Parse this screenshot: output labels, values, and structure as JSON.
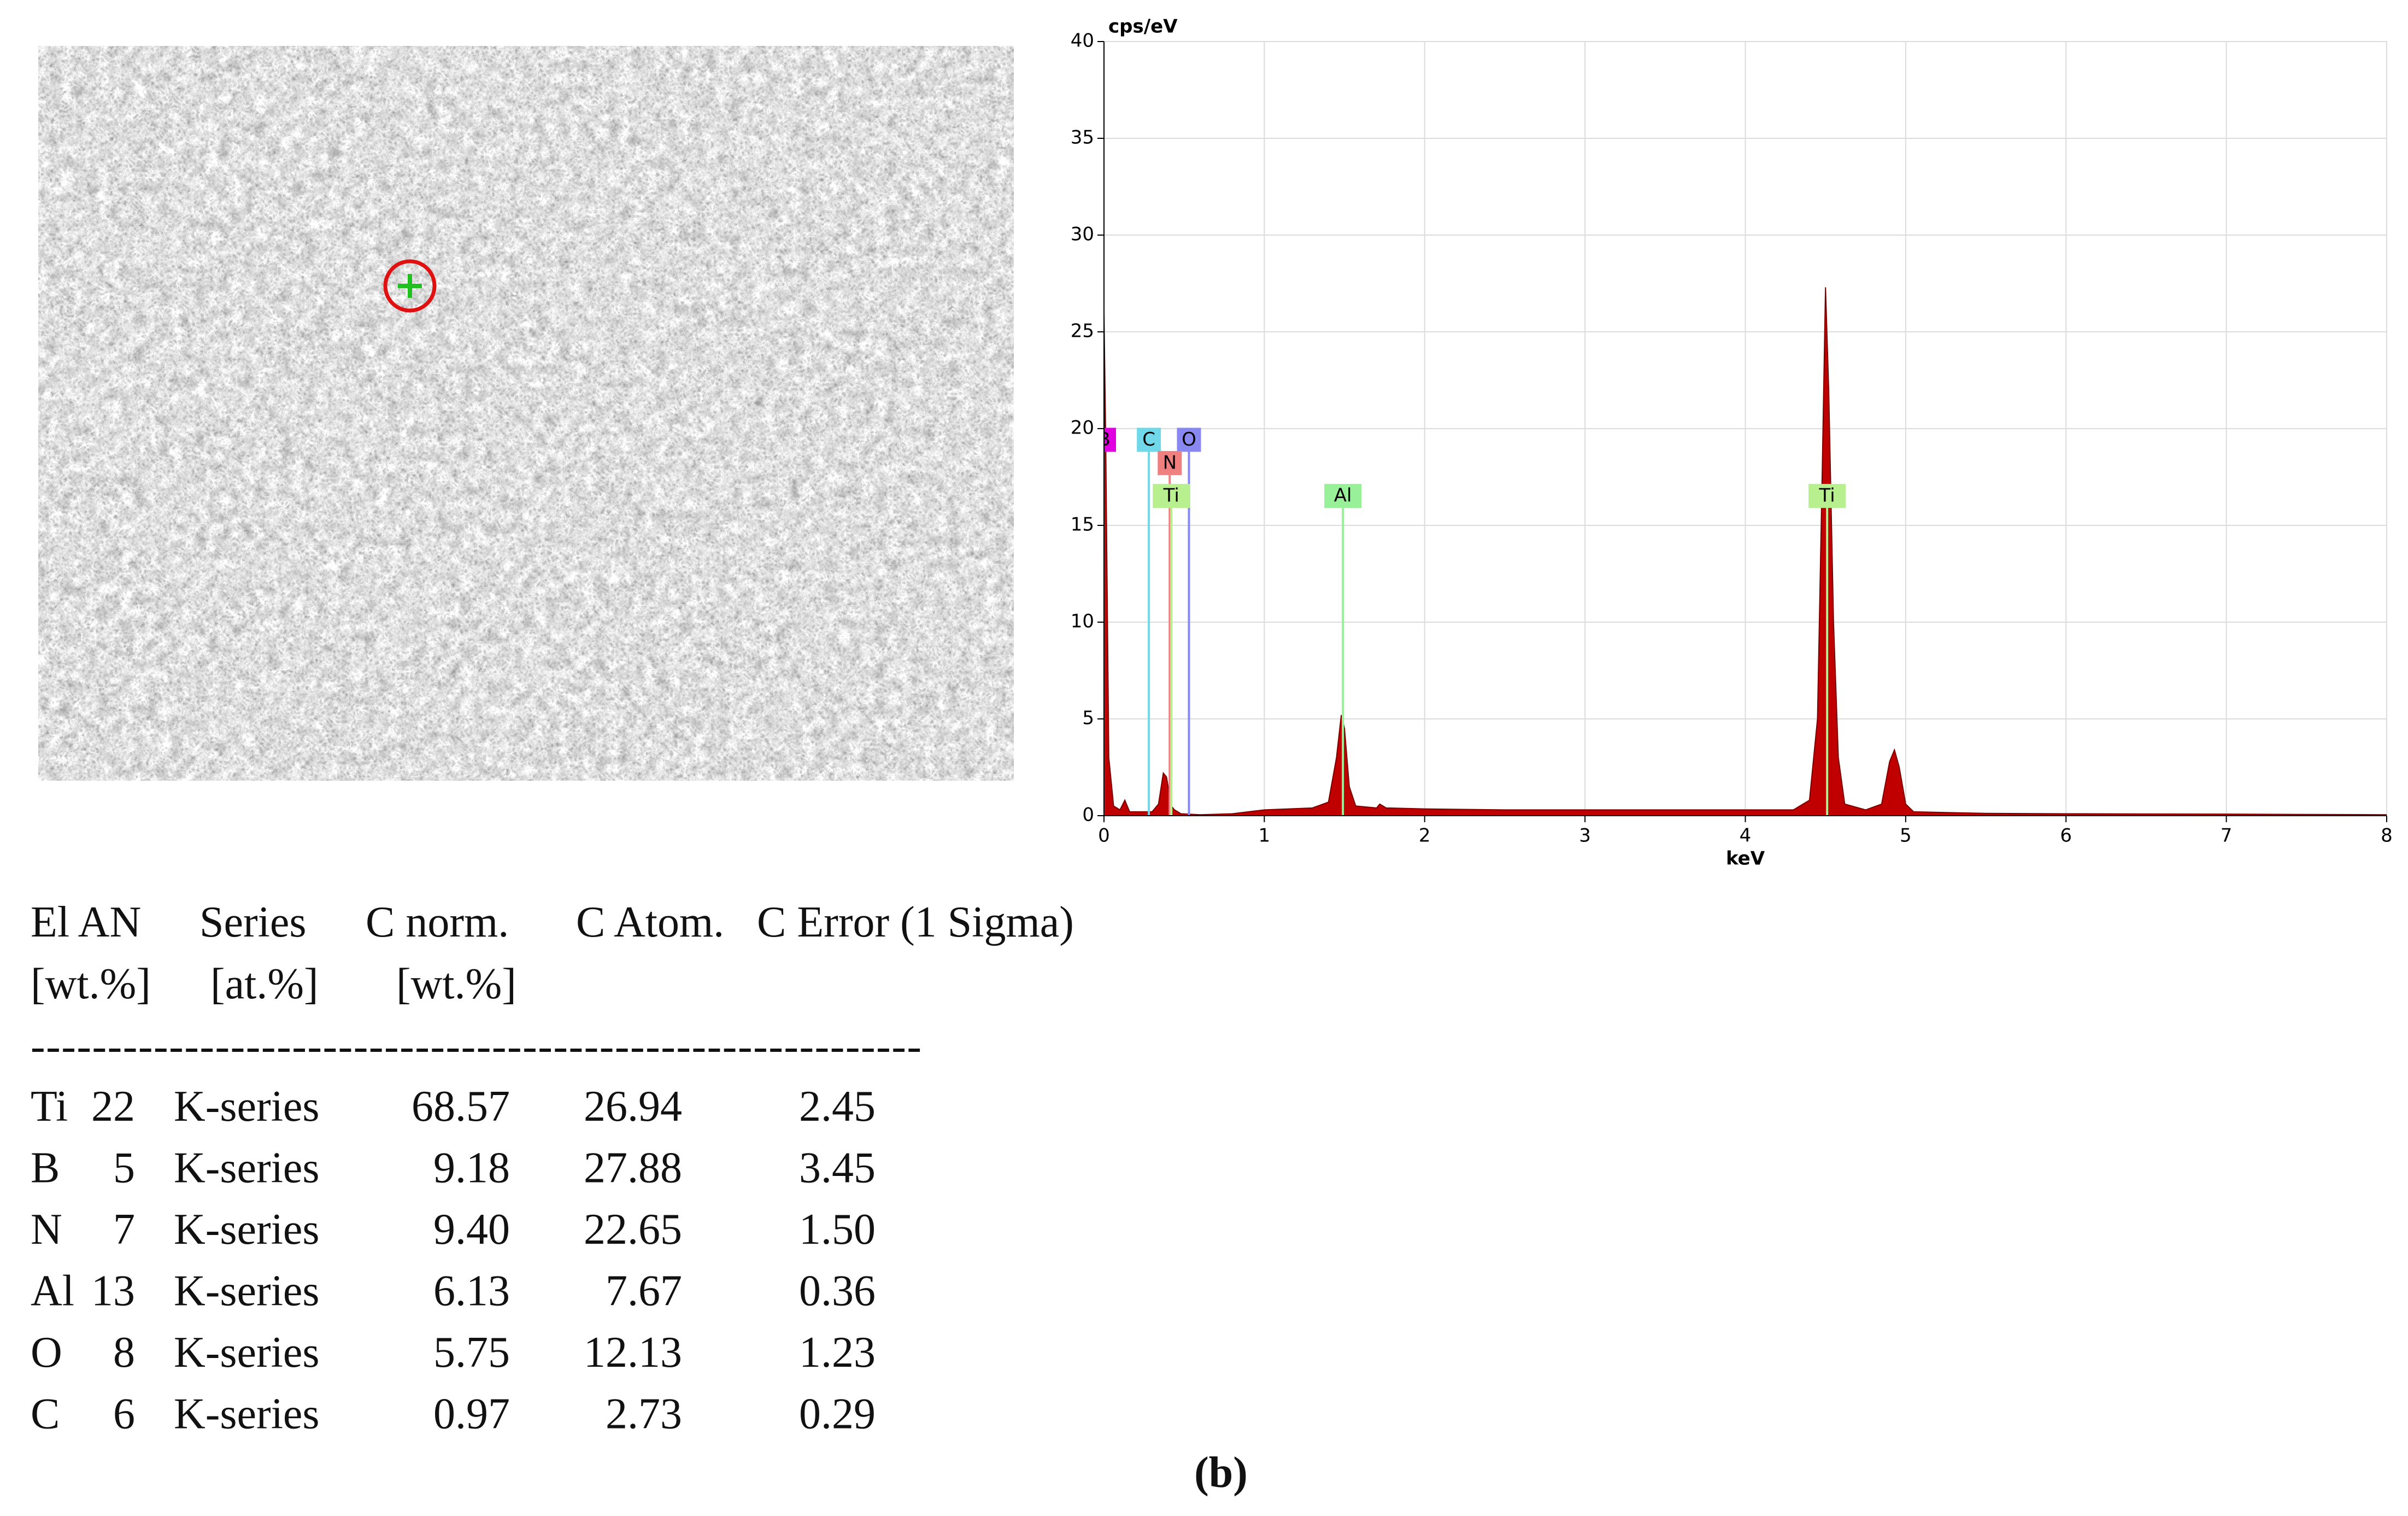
{
  "chart_data": {
    "type": "area",
    "ylabel": "cps/eV",
    "xlabel": "keV",
    "x": [
      0,
      0.01,
      0.03,
      0.06,
      0.1,
      0.13,
      0.16,
      0.3,
      0.34,
      0.37,
      0.39,
      0.42,
      0.44,
      0.48,
      0.6,
      0.8,
      1.0,
      1.3,
      1.4,
      1.45,
      1.48,
      1.5,
      1.53,
      1.57,
      1.7,
      1.72,
      1.76,
      2.0,
      2.5,
      3.0,
      3.5,
      4.0,
      4.3,
      4.4,
      4.45,
      4.48,
      4.5,
      4.52,
      4.55,
      4.58,
      4.62,
      4.75,
      4.85,
      4.9,
      4.93,
      4.96,
      5.0,
      5.05,
      5.5,
      6.0,
      7.0,
      8.0
    ],
    "values": [
      26,
      20,
      3,
      0.5,
      0.3,
      0.8,
      0.2,
      0.2,
      0.6,
      2.2,
      2.0,
      0.5,
      0.3,
      0.1,
      0.05,
      0.1,
      0.3,
      0.4,
      0.7,
      3.0,
      5.2,
      4.5,
      1.5,
      0.5,
      0.4,
      0.6,
      0.4,
      0.35,
      0.3,
      0.3,
      0.3,
      0.3,
      0.3,
      0.8,
      5,
      18,
      27.3,
      22,
      10,
      3,
      0.6,
      0.3,
      0.6,
      2.8,
      3.4,
      2.5,
      0.6,
      0.2,
      0.12,
      0.1,
      0.08,
      0.05
    ],
    "color": "#c00000",
    "xlim": [
      0,
      8
    ],
    "xticks": [
      0,
      1,
      2,
      3,
      4,
      5,
      6,
      7,
      8
    ],
    "ylim": [
      0,
      40
    ],
    "yticks": [
      0,
      5,
      10,
      15,
      20,
      25,
      30,
      35,
      40
    ],
    "grid": true,
    "markers": [
      {
        "label": "B",
        "x": 0.0,
        "y": 18.8,
        "color": "#e000e0"
      },
      {
        "label": "C",
        "x": 0.28,
        "y": 18.8,
        "color": "#70d8e8"
      },
      {
        "label": "O",
        "x": 0.53,
        "y": 18.8,
        "color": "#8888f0"
      },
      {
        "label": "N",
        "x": 0.41,
        "y": 17.6,
        "color": "#f08080"
      },
      {
        "label": "Ti",
        "x": 0.42,
        "y": 15.9,
        "color": "#b8f090"
      },
      {
        "label": "Al",
        "x": 1.49,
        "y": 15.9,
        "color": "#98f098"
      },
      {
        "label": "Ti",
        "x": 4.51,
        "y": 15.9,
        "color": "#b8f090"
      }
    ]
  },
  "table": {
    "header": [
      "El AN",
      "Series",
      "C norm.",
      "C Atom.",
      "C Error (1 Sigma)"
    ],
    "units": [
      "[wt.%]",
      "[at.%]",
      "[wt.%]"
    ],
    "separator": "----------------------------------------------------------",
    "rows": [
      [
        "Ti",
        "22",
        "K-series",
        "68.57",
        "26.94",
        "2.45"
      ],
      [
        "B",
        "5",
        "K-series",
        "9.18",
        "27.88",
        "3.45"
      ],
      [
        "N",
        "7",
        "K-series",
        "9.40",
        "22.65",
        "1.50"
      ],
      [
        "Al",
        "13",
        "K-series",
        "6.13",
        "7.67",
        "0.36"
      ],
      [
        "O",
        "8",
        "K-series",
        "5.75",
        "12.13",
        "1.23"
      ],
      [
        "C",
        "6",
        "K-series",
        "0.97",
        "2.73",
        "0.29"
      ]
    ]
  },
  "caption": "(b)"
}
